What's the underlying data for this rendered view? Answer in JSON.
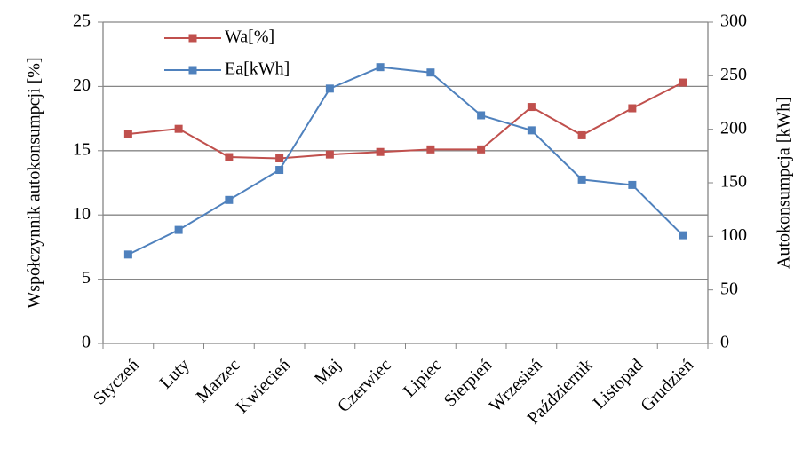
{
  "chart_data": {
    "type": "line",
    "categories": [
      "Styczeń",
      "Luty",
      "Marzec",
      "Kwiecień",
      "Maj",
      "Czerwiec",
      "Lipiec",
      "Sierpień",
      "Wrzesień",
      "Październik",
      "Listopad",
      "Grudzień"
    ],
    "series": [
      {
        "name": "Wa[%]",
        "color": "#c0504d",
        "values": [
          16.3,
          16.7,
          14.5,
          14.4,
          14.7,
          14.9,
          15.1,
          15.1,
          18.4,
          16.2,
          18.3,
          20.3
        ]
      },
      {
        "name": "Ea[kWh]",
        "color": "#4f81bd",
        "axis": "y2",
        "values": [
          83,
          106,
          134,
          162,
          238,
          258,
          253,
          213,
          199,
          153,
          148,
          101
        ]
      }
    ],
    "ylabel": "Współczynnik autokonsumpcji [%]",
    "y2label": "Autokonsumpcja [kWh]",
    "ylim": [
      0,
      25
    ],
    "yticks": [
      0,
      5,
      10,
      15,
      20,
      25
    ],
    "y2lim": [
      0,
      300
    ],
    "y2ticks": [
      0,
      50,
      100,
      150,
      200,
      250,
      300
    ],
    "grid": true,
    "legend": "upper left"
  }
}
